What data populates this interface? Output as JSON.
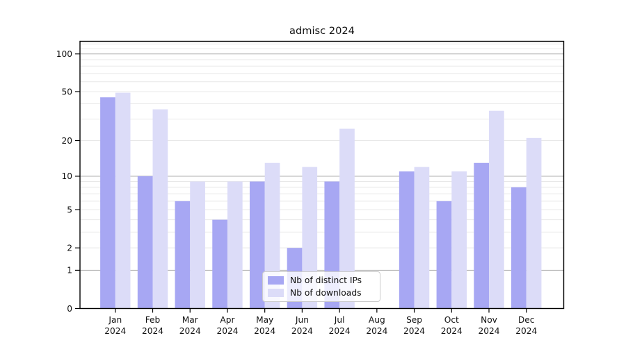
{
  "chart_data": {
    "type": "bar",
    "title": "admisc 2024",
    "categories": [
      "Jan",
      "Feb",
      "Mar",
      "Apr",
      "May",
      "Jun",
      "Jul",
      "Aug",
      "Sep",
      "Oct",
      "Nov",
      "Dec"
    ],
    "category_year": "2024",
    "series": [
      {
        "name": "Nb of distinct IPs",
        "color": "#a7a7f3",
        "values": [
          45,
          10,
          6,
          4,
          9,
          2,
          9,
          0,
          11,
          6,
          13,
          8
        ]
      },
      {
        "name": "Nb of downloads",
        "color": "#dcdcf8",
        "values": [
          49,
          36,
          9,
          9,
          13,
          12,
          25,
          0,
          12,
          11,
          35,
          21
        ]
      }
    ],
    "xlabel": "",
    "ylabel": "",
    "yscale": "log1p",
    "ylim": [
      0,
      126
    ],
    "yticks": [
      100,
      50,
      20,
      10,
      5,
      2,
      1,
      0
    ],
    "grid": {
      "on": true,
      "major_values": [
        1,
        10,
        100
      ],
      "minor_values": [
        2,
        3,
        4,
        5,
        6,
        7,
        8,
        9,
        20,
        30,
        40,
        50,
        60,
        70,
        80,
        90,
        110,
        120
      ],
      "major_color": "#b3b3b3",
      "minor_color": "#e8e8e8"
    },
    "legend": {
      "position": "lower center"
    }
  },
  "colors": {
    "spine": "#000000",
    "text": "#111111",
    "background": "#ffffff"
  }
}
